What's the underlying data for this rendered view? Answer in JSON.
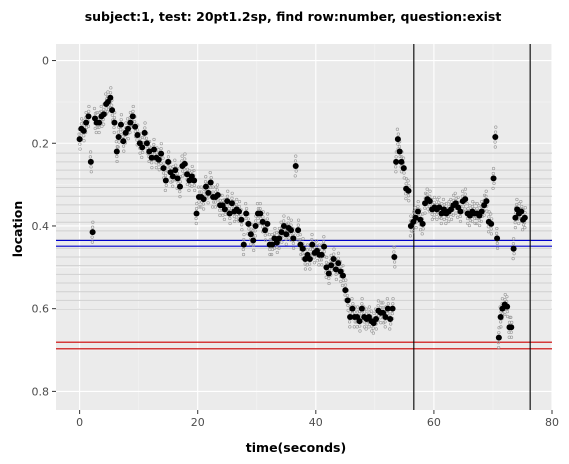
{
  "chart_data": {
    "type": "scatter",
    "title": "subject:1, test: 20pt1.2sp, find row:number, question:exist",
    "xlabel": "time(seconds)",
    "ylabel": "location",
    "xlim": [
      -4,
      80
    ],
    "ylim": [
      0.845,
      -0.04
    ],
    "y_reversed": true,
    "xticks": [
      0,
      20,
      40,
      60,
      80
    ],
    "yticks": [
      0,
      0.2,
      0.4,
      0.6,
      0.8
    ],
    "ytick_labels": [
      "0",
      "0.2",
      "0.4",
      "0.6",
      "0.8"
    ],
    "grid": true,
    "panel_background": "#ebebeb",
    "colors": {
      "fixation_point": "#000000",
      "raw_sample": "#999999",
      "row_line": "#d0d0d0",
      "target_row_line": "#0000cc",
      "answer_row_line": "#cc0000",
      "event_line": "#000000"
    },
    "reference_lines": {
      "row_lines_y": [
        0.224,
        0.245,
        0.265,
        0.286,
        0.307,
        0.328,
        0.349,
        0.37,
        0.391,
        0.412,
        0.433,
        0.454,
        0.475,
        0.496,
        0.517,
        0.538,
        0.559,
        0.58,
        0.601
      ],
      "target_row_y": [
        0.435,
        0.449
      ],
      "answer_row_y": [
        0.681,
        0.697
      ],
      "event_x": [
        56.6,
        76.3
      ]
    },
    "series": [
      {
        "role": "fixations",
        "points": [
          [
            0,
            0.19
          ],
          [
            0.3,
            0.165
          ],
          [
            0.7,
            0.17
          ],
          [
            1.1,
            0.15
          ],
          [
            1.5,
            0.135
          ],
          [
            1.9,
            0.245
          ],
          [
            2.2,
            0.415
          ],
          [
            2.6,
            0.14
          ],
          [
            2.9,
            0.15
          ],
          [
            3.3,
            0.15
          ],
          [
            3.7,
            0.135
          ],
          [
            4.1,
            0.13
          ],
          [
            4.5,
            0.105
          ],
          [
            4.8,
            0.1
          ],
          [
            5.2,
            0.09
          ],
          [
            5.5,
            0.12
          ],
          [
            5.9,
            0.15
          ],
          [
            6.3,
            0.22
          ],
          [
            6.6,
            0.185
          ],
          [
            7,
            0.155
          ],
          [
            7.4,
            0.195
          ],
          [
            7.8,
            0.175
          ],
          [
            8.2,
            0.165
          ],
          [
            8.6,
            0.15
          ],
          [
            9,
            0.135
          ],
          [
            9.4,
            0.16
          ],
          [
            9.8,
            0.18
          ],
          [
            10.2,
            0.2
          ],
          [
            10.6,
            0.21
          ],
          [
            11,
            0.175
          ],
          [
            11.4,
            0.2
          ],
          [
            11.8,
            0.22
          ],
          [
            12.2,
            0.235
          ],
          [
            12.6,
            0.215
          ],
          [
            13,
            0.235
          ],
          [
            13.4,
            0.24
          ],
          [
            13.8,
            0.225
          ],
          [
            14.2,
            0.26
          ],
          [
            14.6,
            0.29
          ],
          [
            15,
            0.245
          ],
          [
            15.4,
            0.27
          ],
          [
            15.8,
            0.28
          ],
          [
            16.2,
            0.265
          ],
          [
            16.6,
            0.285
          ],
          [
            17,
            0.305
          ],
          [
            17.4,
            0.255
          ],
          [
            17.8,
            0.25
          ],
          [
            18.2,
            0.275
          ],
          [
            18.6,
            0.29
          ],
          [
            19,
            0.28
          ],
          [
            19.4,
            0.29
          ],
          [
            19.8,
            0.37
          ],
          [
            20.2,
            0.33
          ],
          [
            20.6,
            0.33
          ],
          [
            21,
            0.335
          ],
          [
            21.4,
            0.305
          ],
          [
            21.8,
            0.32
          ],
          [
            22.2,
            0.295
          ],
          [
            22.6,
            0.33
          ],
          [
            23,
            0.33
          ],
          [
            23.4,
            0.325
          ],
          [
            23.8,
            0.35
          ],
          [
            24.2,
            0.35
          ],
          [
            24.6,
            0.36
          ],
          [
            25,
            0.34
          ],
          [
            25.4,
            0.37
          ],
          [
            25.8,
            0.345
          ],
          [
            26.2,
            0.365
          ],
          [
            26.6,
            0.36
          ],
          [
            27,
            0.365
          ],
          [
            27.4,
            0.385
          ],
          [
            27.8,
            0.445
          ],
          [
            28.2,
            0.37
          ],
          [
            28.6,
            0.395
          ],
          [
            29,
            0.42
          ],
          [
            29.4,
            0.435
          ],
          [
            29.8,
            0.4
          ],
          [
            30.2,
            0.37
          ],
          [
            30.6,
            0.37
          ],
          [
            31,
            0.39
          ],
          [
            31.4,
            0.41
          ],
          [
            31.8,
            0.395
          ],
          [
            32.2,
            0.445
          ],
          [
            32.6,
            0.445
          ],
          [
            33,
            0.43
          ],
          [
            33.4,
            0.44
          ],
          [
            33.8,
            0.43
          ],
          [
            34.2,
            0.415
          ],
          [
            34.6,
            0.4
          ],
          [
            35,
            0.42
          ],
          [
            35.4,
            0.405
          ],
          [
            35.8,
            0.41
          ],
          [
            36.2,
            0.43
          ],
          [
            36.6,
            0.255
          ],
          [
            37,
            0.41
          ],
          [
            37.4,
            0.445
          ],
          [
            37.8,
            0.455
          ],
          [
            38.2,
            0.48
          ],
          [
            38.6,
            0.47
          ],
          [
            39,
            0.48
          ],
          [
            39.4,
            0.445
          ],
          [
            39.8,
            0.465
          ],
          [
            40.2,
            0.46
          ],
          [
            40.6,
            0.47
          ],
          [
            41,
            0.47
          ],
          [
            41.4,
            0.45
          ],
          [
            41.8,
            0.5
          ],
          [
            42.2,
            0.515
          ],
          [
            42.6,
            0.495
          ],
          [
            43,
            0.48
          ],
          [
            43.4,
            0.505
          ],
          [
            43.8,
            0.49
          ],
          [
            44.2,
            0.51
          ],
          [
            44.6,
            0.52
          ],
          [
            45,
            0.555
          ],
          [
            45.4,
            0.58
          ],
          [
            45.8,
            0.62
          ],
          [
            46.2,
            0.6
          ],
          [
            46.6,
            0.62
          ],
          [
            47,
            0.62
          ],
          [
            47.4,
            0.63
          ],
          [
            47.8,
            0.6
          ],
          [
            48.2,
            0.62
          ],
          [
            48.6,
            0.625
          ],
          [
            49,
            0.62
          ],
          [
            49.4,
            0.63
          ],
          [
            49.8,
            0.635
          ],
          [
            50.2,
            0.625
          ],
          [
            50.6,
            0.605
          ],
          [
            51,
            0.61
          ],
          [
            51.4,
            0.61
          ],
          [
            51.8,
            0.62
          ],
          [
            52.2,
            0.6
          ],
          [
            52.6,
            0.625
          ],
          [
            53,
            0.6
          ],
          [
            53.3,
            0.475
          ],
          [
            53.6,
            0.245
          ],
          [
            53.9,
            0.19
          ],
          [
            54.2,
            0.22
          ],
          [
            54.5,
            0.245
          ],
          [
            54.9,
            0.26
          ],
          [
            55.3,
            0.31
          ],
          [
            55.7,
            0.315
          ],
          [
            56.1,
            0.4
          ],
          [
            56.5,
            0.39
          ],
          [
            56.9,
            0.38
          ],
          [
            57.3,
            0.365
          ],
          [
            57.7,
            0.385
          ],
          [
            58.1,
            0.395
          ],
          [
            58.5,
            0.345
          ],
          [
            58.9,
            0.335
          ],
          [
            59.3,
            0.34
          ],
          [
            59.7,
            0.36
          ],
          [
            60.1,
            0.355
          ],
          [
            60.5,
            0.36
          ],
          [
            60.9,
            0.355
          ],
          [
            61.3,
            0.37
          ],
          [
            61.7,
            0.36
          ],
          [
            62.1,
            0.37
          ],
          [
            62.5,
            0.365
          ],
          [
            62.9,
            0.36
          ],
          [
            63.3,
            0.35
          ],
          [
            63.7,
            0.345
          ],
          [
            64.1,
            0.355
          ],
          [
            64.5,
            0.365
          ],
          [
            64.9,
            0.34
          ],
          [
            65.3,
            0.335
          ],
          [
            65.7,
            0.37
          ],
          [
            66.1,
            0.375
          ],
          [
            66.5,
            0.365
          ],
          [
            66.9,
            0.37
          ],
          [
            67.3,
            0.37
          ],
          [
            67.7,
            0.375
          ],
          [
            68.1,
            0.365
          ],
          [
            68.5,
            0.35
          ],
          [
            68.9,
            0.34
          ],
          [
            69.3,
            0.39
          ],
          [
            69.7,
            0.395
          ],
          [
            70.1,
            0.285
          ],
          [
            70.4,
            0.185
          ],
          [
            70.7,
            0.43
          ],
          [
            71,
            0.67
          ],
          [
            71.3,
            0.62
          ],
          [
            71.6,
            0.6
          ],
          [
            72,
            0.59
          ],
          [
            72.4,
            0.595
          ],
          [
            72.8,
            0.645
          ],
          [
            73.1,
            0.645
          ],
          [
            73.5,
            0.455
          ],
          [
            73.8,
            0.38
          ],
          [
            74.1,
            0.36
          ],
          [
            74.4,
            0.37
          ],
          [
            74.8,
            0.365
          ],
          [
            75.1,
            0.385
          ],
          [
            75.4,
            0.38
          ]
        ]
      }
    ]
  }
}
